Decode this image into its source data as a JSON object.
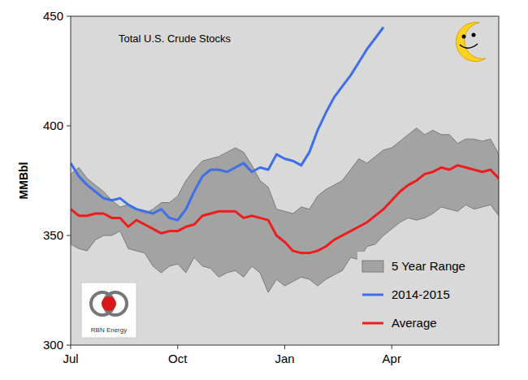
{
  "chart_data": {
    "type": "line",
    "title": "Total U.S. Crude Stocks",
    "y_label": "MMBbl",
    "annotations": [
      "RBN Energy"
    ],
    "categories": [
      "Jul",
      null,
      null,
      null,
      null,
      null,
      null,
      null,
      null,
      null,
      null,
      null,
      null,
      "Oct",
      null,
      null,
      null,
      null,
      null,
      null,
      null,
      null,
      null,
      null,
      null,
      null,
      "Jan",
      null,
      null,
      null,
      null,
      null,
      null,
      null,
      null,
      null,
      null,
      null,
      null,
      "Apr",
      null,
      null,
      null,
      null,
      null,
      null,
      null,
      null,
      null,
      null,
      null,
      null,
      null
    ],
    "series": [
      {
        "name": "5 Year Range",
        "type": "band",
        "color": "#a3a3a3",
        "high": [
          378,
          381,
          376,
          373,
          370,
          366,
          363,
          364,
          362,
          360,
          362,
          365,
          365,
          368,
          375,
          380,
          384,
          385,
          386,
          388,
          390,
          388,
          382,
          375,
          372,
          362,
          361,
          360,
          363,
          362,
          368,
          371,
          373,
          375,
          380,
          385,
          383,
          386,
          389,
          390,
          393,
          396,
          399,
          396,
          398,
          396,
          396,
          392,
          394,
          394,
          393,
          394,
          387
        ],
        "low": [
          346,
          344,
          343,
          348,
          350,
          350,
          352,
          344,
          343,
          342,
          336,
          333,
          336,
          337,
          333,
          340,
          336,
          335,
          331,
          333,
          334,
          331,
          336,
          333,
          324,
          330,
          327,
          329,
          331,
          330,
          327,
          330,
          332,
          334,
          340,
          339,
          345,
          346,
          350,
          353,
          356,
          358,
          357,
          358,
          360,
          363,
          362,
          361,
          364,
          362,
          363,
          364,
          359
        ]
      },
      {
        "name": "2014-2015",
        "type": "line",
        "color": "#3f6fe8",
        "values": [
          383,
          377,
          373,
          370,
          367,
          366,
          367,
          364,
          362,
          361,
          360,
          362,
          358,
          357,
          362,
          370,
          377,
          380,
          380,
          379,
          381,
          383,
          379,
          381,
          380,
          387,
          385,
          384,
          382,
          388,
          398,
          406,
          413,
          418,
          423,
          429,
          435,
          440,
          445,
          null,
          null,
          null,
          null,
          null,
          null,
          null,
          null,
          null,
          null,
          null,
          null,
          null,
          null
        ]
      },
      {
        "name": "Average",
        "type": "line",
        "color": "#ee1c1c",
        "values": [
          362,
          359,
          359,
          360,
          360,
          358,
          358,
          354,
          357,
          355,
          353,
          351,
          352,
          352,
          354,
          355,
          359,
          360,
          361,
          361,
          361,
          358,
          359,
          358,
          357,
          350,
          347,
          343,
          342,
          342,
          343,
          345,
          348,
          350,
          352,
          354,
          356,
          359,
          362,
          366,
          370,
          373,
          375,
          378,
          379,
          381,
          380,
          382,
          381,
          380,
          379,
          380,
          376
        ]
      }
    ],
    "ylim": [
      300,
      450
    ],
    "yticks": [
      300,
      350,
      400,
      450
    ],
    "grid": false,
    "legend": "lower right"
  }
}
